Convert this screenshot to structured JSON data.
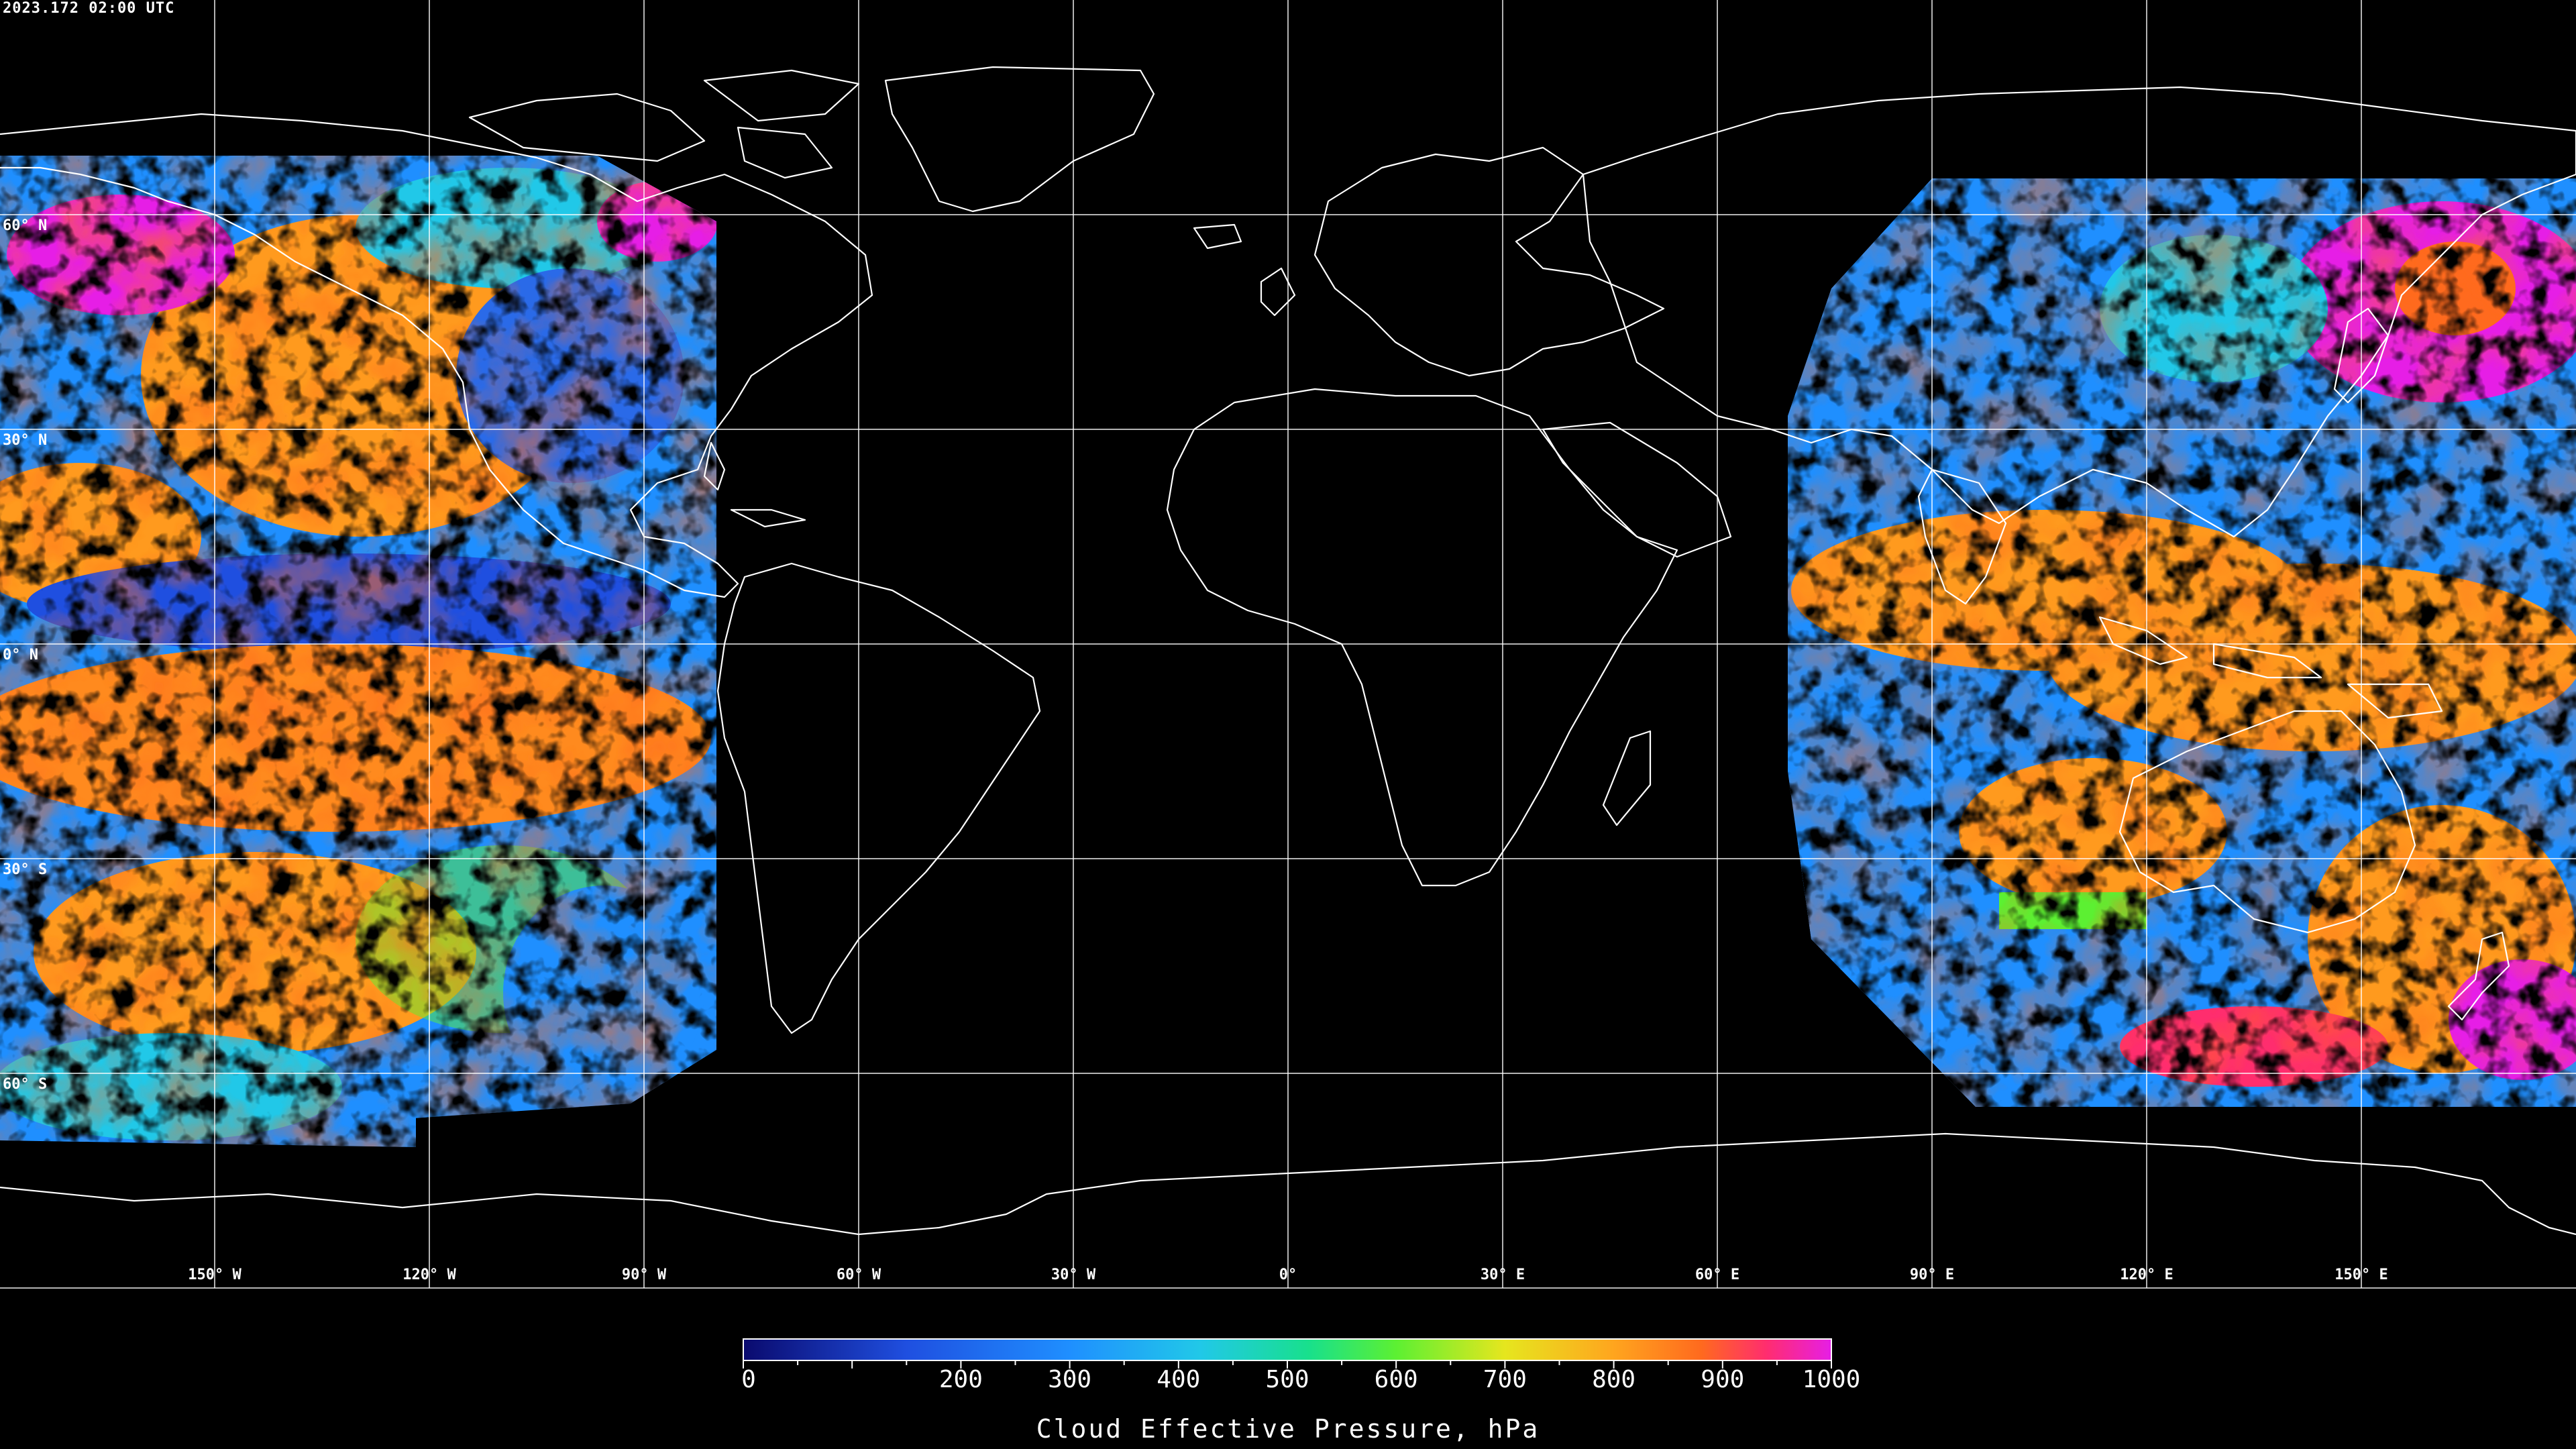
{
  "title": {
    "timestamp": "2023.172 02:00 UTC"
  },
  "graticule": {
    "lat_labels": [
      {
        "text": "60° N",
        "lat": 60
      },
      {
        "text": "30° N",
        "lat": 30
      },
      {
        "text": "0° N",
        "lat": 0
      },
      {
        "text": "30° S",
        "lat": -30
      },
      {
        "text": "60° S",
        "lat": -60
      }
    ],
    "lon_labels": [
      {
        "text": "150° W",
        "lon": -150
      },
      {
        "text": "120° W",
        "lon": -120
      },
      {
        "text": "90° W",
        "lon": -90
      },
      {
        "text": "60° W",
        "lon": -60
      },
      {
        "text": "30° W",
        "lon": -30
      },
      {
        "text": "0°",
        "lon": 0
      },
      {
        "text": "30° E",
        "lon": 30
      },
      {
        "text": "60° E",
        "lon": 60
      },
      {
        "text": "90° E",
        "lon": 90
      },
      {
        "text": "120° E",
        "lon": 120
      },
      {
        "text": "150° E",
        "lon": 150
      }
    ]
  },
  "colorbar": {
    "min": 0,
    "max": 1000,
    "tick_labels": [
      "0",
      "200",
      "300",
      "400",
      "500",
      "600",
      "700",
      "800",
      "900",
      "1000"
    ],
    "tick_values": [
      0,
      200,
      300,
      400,
      500,
      600,
      700,
      800,
      900,
      1000
    ],
    "label": "Cloud Effective Pressure, hPa",
    "colors": [
      "#0a0a6e",
      "#1f4fe0",
      "#1f8fff",
      "#21c8e8",
      "#18e08c",
      "#5cf032",
      "#e6e61e",
      "#ffa51e",
      "#ff6a1e",
      "#ff2d6e",
      "#e61ee6"
    ]
  },
  "colors": {
    "background": "#000000",
    "coastline": "#ffffff",
    "grid": "#ffffff"
  }
}
